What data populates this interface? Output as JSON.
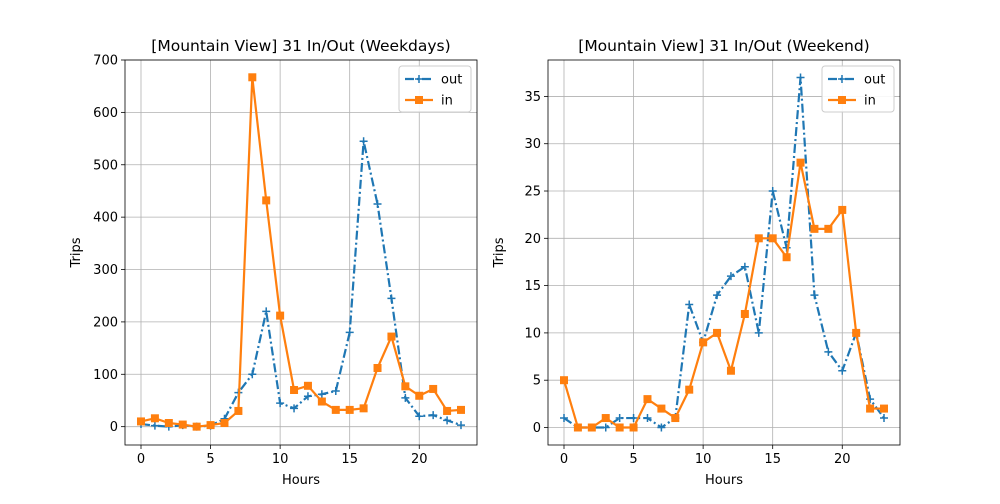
{
  "chart_data": [
    {
      "type": "line",
      "title": "[Mountain View] 31 In/Out (Weekdays)",
      "xlabel": "Hours",
      "ylabel": "Trips",
      "xlim": [
        -1.15,
        24.15
      ],
      "ylim": [
        -35,
        700
      ],
      "xticks": [
        0,
        5,
        10,
        15,
        20
      ],
      "yticks": [
        0,
        100,
        200,
        300,
        400,
        500,
        600,
        700
      ],
      "grid": true,
      "legend_position": "top-right",
      "x": [
        0,
        1,
        2,
        3,
        4,
        5,
        6,
        7,
        8,
        9,
        10,
        11,
        12,
        13,
        14,
        15,
        16,
        17,
        18,
        19,
        20,
        21,
        22,
        23
      ],
      "series": [
        {
          "name": "out",
          "color": "#1f77b4",
          "style": "dash-dot",
          "marker": "plus",
          "values": [
            5,
            2,
            0,
            3,
            0,
            2,
            15,
            65,
            100,
            220,
            45,
            35,
            58,
            62,
            68,
            180,
            545,
            425,
            245,
            55,
            20,
            22,
            12,
            3
          ]
        },
        {
          "name": "in",
          "color": "#ff7f0e",
          "style": "solid",
          "marker": "square",
          "values": [
            10,
            16,
            7,
            4,
            0,
            3,
            7,
            30,
            667,
            432,
            212,
            70,
            78,
            48,
            32,
            32,
            35,
            112,
            172,
            77,
            59,
            72,
            30,
            32
          ]
        }
      ]
    },
    {
      "type": "line",
      "title": "[Mountain View] 31 In/Out (Weekend)",
      "xlabel": "Hours",
      "ylabel": "Trips",
      "xlim": [
        -1.15,
        24.15
      ],
      "ylim": [
        -1.85,
        38.85
      ],
      "xticks": [
        0,
        5,
        10,
        15,
        20
      ],
      "yticks": [
        0,
        5,
        10,
        15,
        20,
        25,
        30,
        35
      ],
      "grid": true,
      "legend_position": "top-right",
      "x": [
        0,
        1,
        2,
        3,
        4,
        5,
        6,
        7,
        8,
        9,
        10,
        11,
        12,
        13,
        14,
        15,
        16,
        17,
        18,
        19,
        20,
        21,
        22,
        23
      ],
      "series": [
        {
          "name": "out",
          "color": "#1f77b4",
          "style": "dash-dot",
          "marker": "plus",
          "values": [
            1,
            0,
            0,
            0,
            1,
            1,
            1,
            0,
            1,
            13,
            9,
            14,
            16,
            17,
            10,
            25,
            19,
            37,
            14,
            8,
            6,
            10,
            3,
            1
          ]
        },
        {
          "name": "in",
          "color": "#ff7f0e",
          "style": "solid",
          "marker": "square",
          "values": [
            5,
            0,
            0,
            1,
            0,
            0,
            3,
            2,
            1,
            4,
            9,
            10,
            6,
            12,
            20,
            20,
            18,
            28,
            21,
            21,
            23,
            10,
            2,
            2
          ]
        }
      ]
    }
  ]
}
